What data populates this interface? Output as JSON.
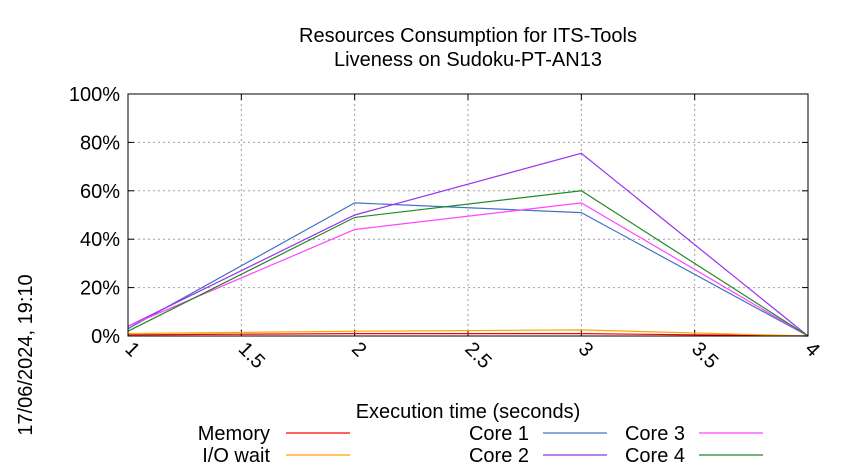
{
  "chart_data": {
    "type": "line",
    "title": "Resources Consumption for ITS-Tools",
    "subtitle": "Liveness on Sudoku-PT-AN13",
    "xlabel": "Execution time (seconds)",
    "ylabel": "",
    "xlim": [
      1,
      4
    ],
    "ylim": [
      0,
      100
    ],
    "xticks": [
      1,
      1.5,
      2,
      2.5,
      3,
      3.5,
      4
    ],
    "xtick_labels": [
      "1",
      "1.5",
      "2",
      "2.5",
      "3",
      "3.5",
      "4"
    ],
    "yticks": [
      0,
      20,
      40,
      60,
      80,
      100
    ],
    "ytick_labels": [
      "0%",
      "20%",
      "40%",
      "60%",
      "80%",
      "100%"
    ],
    "grid": true,
    "legend_position": "bottom",
    "timestamp": "17/06/2024, 19:10",
    "series": [
      {
        "name": "Memory",
        "color": "#ff0000",
        "x": [
          1,
          2,
          3,
          4
        ],
        "y": [
          0.5,
          1,
          1,
          0
        ]
      },
      {
        "name": "I/O wait",
        "color": "#ffa500",
        "x": [
          1,
          2,
          3,
          4
        ],
        "y": [
          1,
          2,
          2.5,
          0
        ]
      },
      {
        "name": "Core 1",
        "color": "#4472c4",
        "x": [
          1,
          2,
          3,
          4
        ],
        "y": [
          3,
          55,
          51,
          0
        ]
      },
      {
        "name": "Core 2",
        "color": "#9933ee",
        "x": [
          1,
          2,
          3,
          4
        ],
        "y": [
          4,
          50,
          75.5,
          0
        ]
      },
      {
        "name": "Core 3",
        "color": "#ff44ff",
        "x": [
          1,
          2,
          3,
          4
        ],
        "y": [
          4,
          44,
          55,
          0
        ]
      },
      {
        "name": "Core 4",
        "color": "#228822",
        "x": [
          1,
          2,
          3,
          4
        ],
        "y": [
          2,
          49,
          60,
          0
        ]
      }
    ]
  }
}
